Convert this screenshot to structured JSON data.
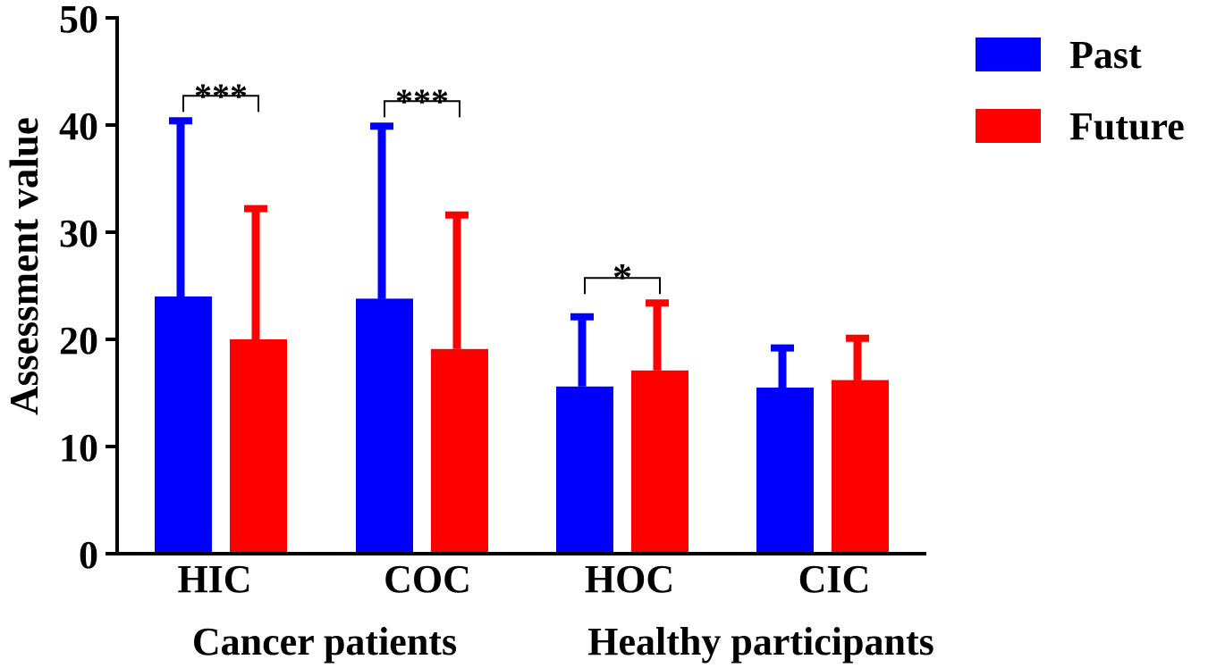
{
  "chart_data": {
    "type": "bar",
    "ylabel": "Assessment value",
    "ylim": [
      0,
      50
    ],
    "yticks": [
      0,
      10,
      20,
      30,
      40,
      50
    ],
    "categories": [
      "HIC",
      "COC",
      "HOC",
      "CIC"
    ],
    "groups": [
      {
        "label": "Cancer patients",
        "categories": [
          "HIC",
          "COC"
        ]
      },
      {
        "label": "Healthy participants",
        "categories": [
          "HOC",
          "CIC"
        ]
      }
    ],
    "series": [
      {
        "name": "Past",
        "color": "#0000ff",
        "values": [
          24.0,
          23.8,
          15.6,
          15.5
        ],
        "errors": [
          16.4,
          16.1,
          6.5,
          3.7
        ]
      },
      {
        "name": "Future",
        "color": "#ff0000",
        "values": [
          20.0,
          19.1,
          17.1,
          16.2
        ],
        "errors": [
          12.2,
          12.5,
          6.3,
          3.9
        ]
      }
    ],
    "significance": [
      {
        "category": "HIC",
        "label": "***"
      },
      {
        "category": "COC",
        "label": "***"
      },
      {
        "category": "HOC",
        "label": "*"
      }
    ],
    "legend_position": "top-right"
  }
}
